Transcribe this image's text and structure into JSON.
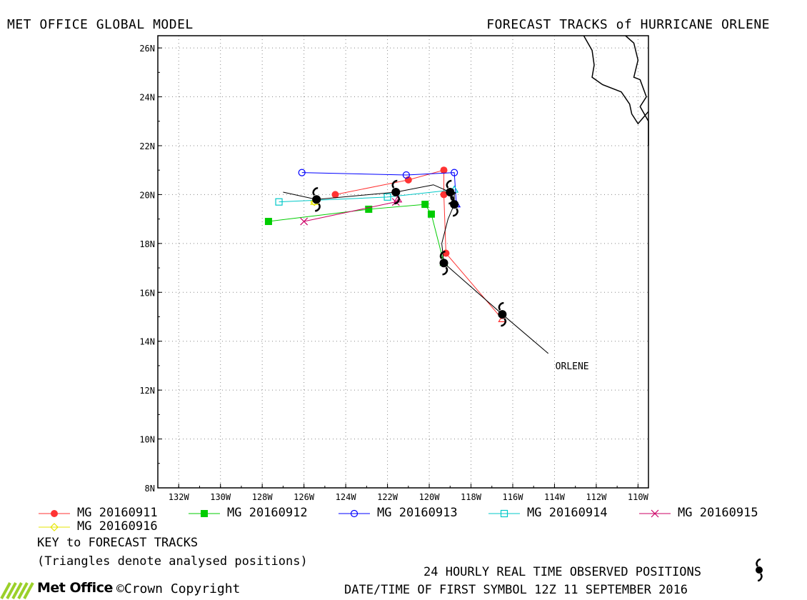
{
  "header": {
    "left_title": "MET OFFICE GLOBAL MODEL",
    "right_title": "FORECAST TRACKS of HURRICANE ORLENE"
  },
  "chart_data": {
    "type": "line",
    "title": "FORECAST TRACKS of HURRICANE ORLENE",
    "xlim": [
      -133,
      -109.5
    ],
    "ylim": [
      8,
      26.5
    ],
    "x_ticks": [
      -132,
      -130,
      -128,
      -126,
      -124,
      -122,
      -120,
      -118,
      -116,
      -114,
      -112,
      -110
    ],
    "x_tick_labels": [
      "132W",
      "130W",
      "128W",
      "126W",
      "124W",
      "122W",
      "120W",
      "118W",
      "116W",
      "114W",
      "112W",
      "110W"
    ],
    "y_ticks": [
      8,
      10,
      12,
      14,
      16,
      18,
      20,
      22,
      24,
      26
    ],
    "y_tick_labels": [
      "8N",
      "10N",
      "12N",
      "14N",
      "16N",
      "18N",
      "20N",
      "22N",
      "24N",
      "26N"
    ],
    "grid": true,
    "series": [
      {
        "name": "MG 20160911",
        "color": "#ff3333",
        "marker": "circle-filled",
        "points": [
          [
            -116.5,
            14.9
          ],
          [
            -119.2,
            17.6
          ],
          [
            -119.3,
            20.0
          ],
          [
            -119.3,
            21.0
          ],
          [
            -121.0,
            20.6
          ],
          [
            -124.5,
            20.0
          ]
        ]
      },
      {
        "name": "MG 20160912",
        "color": "#00cc00",
        "marker": "square-filled",
        "points": [
          [
            -119.3,
            17.2
          ],
          [
            -119.9,
            19.2
          ],
          [
            -120.2,
            19.6
          ],
          [
            -122.9,
            19.4
          ],
          [
            -127.7,
            18.9
          ]
        ]
      },
      {
        "name": "MG 20160913",
        "color": "#0000ff",
        "marker": "circle-open",
        "points": [
          [
            -118.7,
            19.6
          ],
          [
            -118.8,
            20.9
          ],
          [
            -121.1,
            20.8
          ],
          [
            -126.1,
            20.9
          ]
        ]
      },
      {
        "name": "MG 20160914",
        "color": "#00c8c8",
        "marker": "square-open",
        "points": [
          [
            -118.8,
            20.2
          ],
          [
            -122.0,
            19.9
          ],
          [
            -127.2,
            19.7
          ]
        ]
      },
      {
        "name": "MG 20160915",
        "color": "#cc0066",
        "marker": "x",
        "points": [
          [
            -121.5,
            19.8
          ],
          [
            -121.6,
            19.7
          ],
          [
            -126.0,
            18.9
          ]
        ]
      },
      {
        "name": "MG 20160916",
        "color": "#e6e600",
        "marker": "diamond-open",
        "points": [
          [
            -125.5,
            19.7
          ]
        ]
      }
    ],
    "observed_track": {
      "label": "ORLENE",
      "color": "#000000",
      "points": [
        [
          -114.3,
          13.5
        ],
        [
          -116.5,
          15.1
        ],
        [
          -119.3,
          17.2
        ],
        [
          -119.4,
          18.0
        ],
        [
          -119.1,
          19.0
        ],
        [
          -118.8,
          19.6
        ],
        [
          -118.8,
          20.0
        ],
        [
          -119.0,
          20.1
        ],
        [
          -119.8,
          20.4
        ],
        [
          -121.6,
          20.1
        ],
        [
          -125.4,
          19.8
        ],
        [
          -127.0,
          20.1
        ]
      ],
      "observed_positions": [
        [
          -116.5,
          15.1
        ],
        [
          -119.3,
          17.2
        ],
        [
          -118.8,
          19.6
        ],
        [
          -119.0,
          20.1
        ],
        [
          -121.6,
          20.1
        ],
        [
          -125.4,
          19.8
        ]
      ]
    },
    "coastline": [
      [
        [
          -110.6,
          26.5
        ],
        [
          -110.2,
          26.2
        ],
        [
          -110.0,
          25.5
        ],
        [
          -110.2,
          24.8
        ],
        [
          -109.9,
          24.7
        ],
        [
          -109.6,
          24.0
        ],
        [
          -109.9,
          23.6
        ],
        [
          -109.5,
          23.0
        ],
        [
          -109.5,
          22.0
        ]
      ],
      [
        [
          -109.5,
          23.4
        ],
        [
          -109.8,
          23.1
        ],
        [
          -110.0,
          22.9
        ],
        [
          -110.3,
          23.3
        ],
        [
          -110.4,
          23.7
        ],
        [
          -110.8,
          24.2
        ],
        [
          -111.7,
          24.5
        ],
        [
          -112.2,
          24.8
        ],
        [
          -112.1,
          25.3
        ],
        [
          -112.2,
          25.9
        ],
        [
          -112.6,
          26.5
        ]
      ]
    ]
  },
  "legend": {
    "key_title": "KEY to FORECAST TRACKS",
    "note": "(Triangles denote analysed positions)"
  },
  "footer": {
    "observed_label": "24 HOURLY REAL TIME OBSERVED POSITIONS",
    "first_symbol": "DATE/TIME OF FIRST SYMBOL 12Z 11 SEPTEMBER 2016",
    "brand": "Met Office",
    "copyright": "©Crown Copyright"
  }
}
